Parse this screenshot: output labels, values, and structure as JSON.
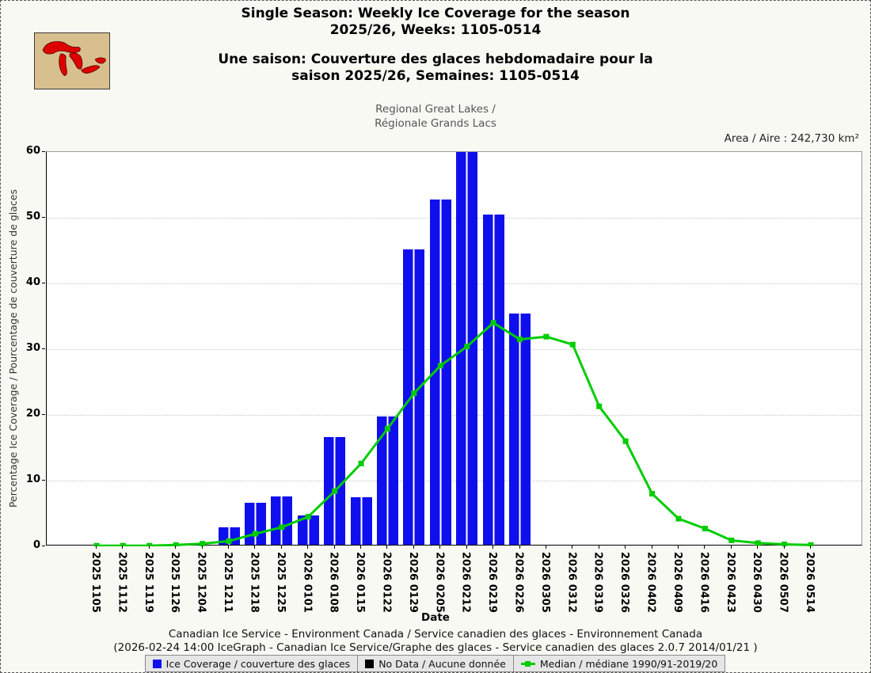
{
  "header": {
    "title_en_line1": "Single Season: Weekly Ice Coverage for the season",
    "title_en_line2": "2025/26, Weeks: 1105-0514",
    "title_fr_line1": "Une saison: Couverture des glaces hebdomadaire pour la",
    "title_fr_line2": "saison 2025/26, Semaines: 1105-0514",
    "region_line1": "Regional Great Lakes /",
    "region_line2": "Régionale Grands Lacs",
    "area_label": "Area / Aire : 242,730 km²",
    "logo_icon": "great-lakes-map"
  },
  "axes": {
    "x_title": "Date",
    "y_title": "Percentage Ice Coverage / Pourcentage de couverture de glaces"
  },
  "footer": {
    "line1": "Canadian Ice Service - Environment Canada / Service canadien des glaces - Environnement Canada",
    "line2": "(2026-02-24 14:00 IceGraph - Canadian Ice Service/Graphe des glaces - Service canadien des glaces 2.0.7 2014/01/21 )"
  },
  "colors": {
    "bar": "#0f0fee",
    "median": "#00cc00",
    "no_data": "#000000",
    "page_background": "#f9f9f4",
    "plot_background": "#ffffff"
  },
  "chart_data": {
    "type": "bar",
    "title": "Single Season: Weekly Ice Coverage for the season 2025/26, Weeks: 1105-0514",
    "subtitle": "Regional Great Lakes / Régionale Grands Lacs",
    "xlabel": "Date",
    "ylabel": "Percentage Ice Coverage / Pourcentage de couverture de glaces",
    "ylim": [
      0,
      60
    ],
    "yticks": [
      0,
      10,
      20,
      30,
      40,
      50,
      60
    ],
    "grid": "horizontal-dotted",
    "legend_position": "bottom",
    "categories": [
      "2025 1105",
      "2025 1112",
      "2025 1119",
      "2025 1126",
      "2025 1204",
      "2025 1211",
      "2025 1218",
      "2025 1225",
      "2026 0101",
      "2026 0108",
      "2026 0115",
      "2026 0122",
      "2026 0129",
      "2026 0205",
      "2026 0212",
      "2026 0219",
      "2026 0226",
      "2026 0305",
      "2026 0312",
      "2026 0319",
      "2026 0326",
      "2026 0402",
      "2026 0409",
      "2026 0416",
      "2026 0423",
      "2026 0430",
      "2026 0507",
      "2026 0514"
    ],
    "series": [
      {
        "name": "Ice Coverage / couverture des glaces",
        "type": "bar",
        "color": "#0f0fee",
        "values": [
          0,
          0,
          0,
          0,
          0,
          2.6,
          6.4,
          7.4,
          4.4,
          16.4,
          7.2,
          19.5,
          45.0,
          52.5,
          59.8,
          50.3,
          35.2,
          null,
          null,
          null,
          null,
          null,
          null,
          null,
          null,
          null,
          null,
          null
        ]
      },
      {
        "name": "Median / médiane 1990/91-2019/20",
        "type": "line",
        "color": "#00cc00",
        "values": [
          0.1,
          0.1,
          0.1,
          0.2,
          0.4,
          0.8,
          1.9,
          2.9,
          4.5,
          8.4,
          12.6,
          17.9,
          23.3,
          27.5,
          30.4,
          34.0,
          31.5,
          31.9,
          30.7,
          21.3,
          16.0,
          8.0,
          4.2,
          2.7,
          0.9,
          0.5,
          0.3,
          0.2
        ]
      }
    ],
    "legend": [
      {
        "label": "Ice Coverage / couverture des glaces",
        "marker": "square",
        "color": "#0f0fee"
      },
      {
        "label": "No Data / Aucune donnée",
        "marker": "square",
        "color": "#000000"
      },
      {
        "label": "Median / médiane 1990/91-2019/20",
        "marker": "line-square",
        "color": "#00cc00"
      }
    ]
  }
}
